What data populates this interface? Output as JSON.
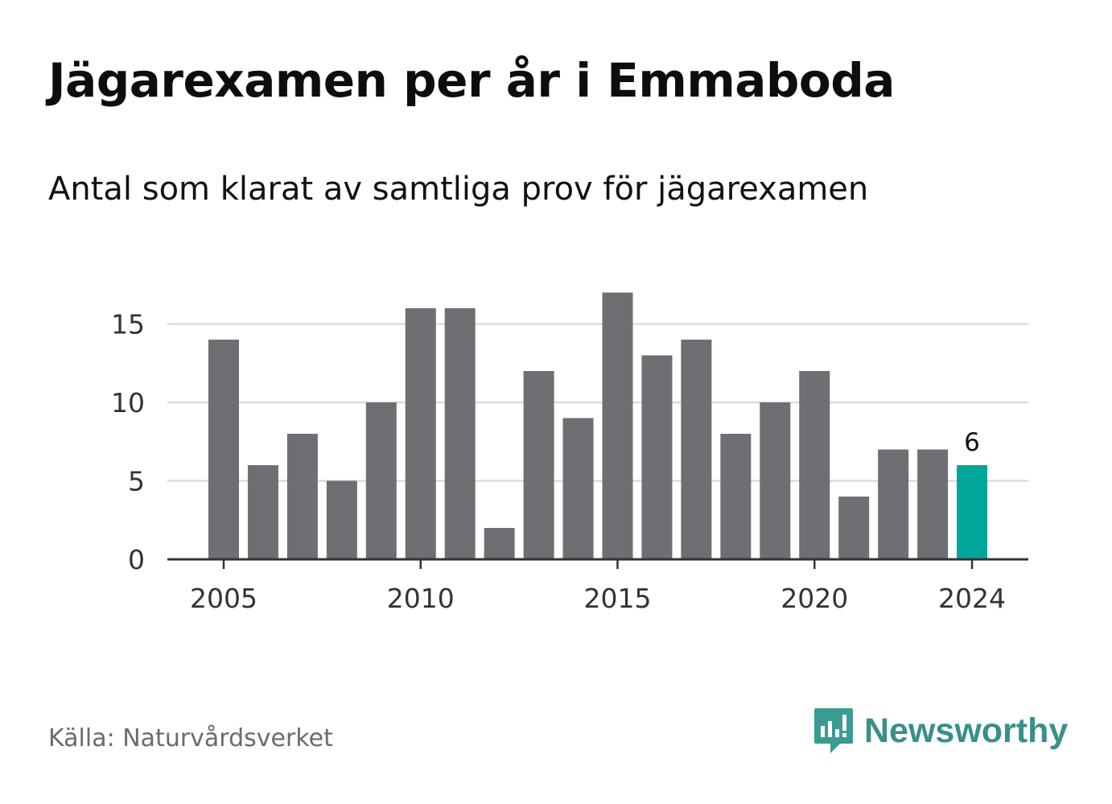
{
  "title": "Jägarexamen per år i Emmaboda",
  "subtitle": "Antal som klarat av samtliga prov för jägarexamen",
  "source": "Källa: Naturvårdsverket",
  "brand": {
    "name": "Newsworthy",
    "color": "#3a9b94",
    "icon": "newsworthy-logo-icon"
  },
  "colors": {
    "bar": "#6e6e73",
    "highlight": "#00a699",
    "grid": "#dcdcdc",
    "axis": "#333333"
  },
  "chart_data": {
    "type": "bar",
    "title": "Jägarexamen per år i Emmaboda",
    "subtitle": "Antal som klarat av samtliga prov för jägarexamen",
    "x": [
      2005,
      2006,
      2007,
      2008,
      2009,
      2010,
      2011,
      2012,
      2013,
      2014,
      2015,
      2016,
      2017,
      2018,
      2019,
      2020,
      2021,
      2022,
      2023,
      2024
    ],
    "values": [
      14,
      6,
      8,
      5,
      10,
      16,
      16,
      2,
      12,
      9,
      17,
      13,
      14,
      8,
      10,
      12,
      4,
      7,
      7,
      6
    ],
    "highlight_index": 19,
    "highlight_label": "6",
    "x_ticks": [
      "2005",
      "2010",
      "2015",
      "2020",
      "2024"
    ],
    "y_ticks": [
      "0",
      "5",
      "10",
      "15"
    ],
    "ylim": [
      0,
      17
    ],
    "xlabel": "",
    "ylabel": "",
    "grid": true
  }
}
